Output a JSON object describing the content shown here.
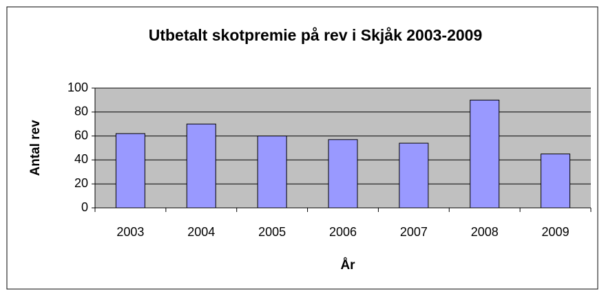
{
  "chart_data": {
    "type": "bar",
    "title": "Utbetalt skotpremie på rev i Skjåk 2003-2009",
    "x_label": "År",
    "y_label": "Antal rev",
    "categories": [
      "2003",
      "2004",
      "2005",
      "2006",
      "2007",
      "2008",
      "2009"
    ],
    "values": [
      62,
      70,
      60,
      57,
      54,
      90,
      45
    ],
    "color": "#9999ff",
    "ylim": [
      0,
      100
    ],
    "yticks": [
      0,
      20,
      40,
      60,
      80,
      100
    ],
    "grid": true
  }
}
